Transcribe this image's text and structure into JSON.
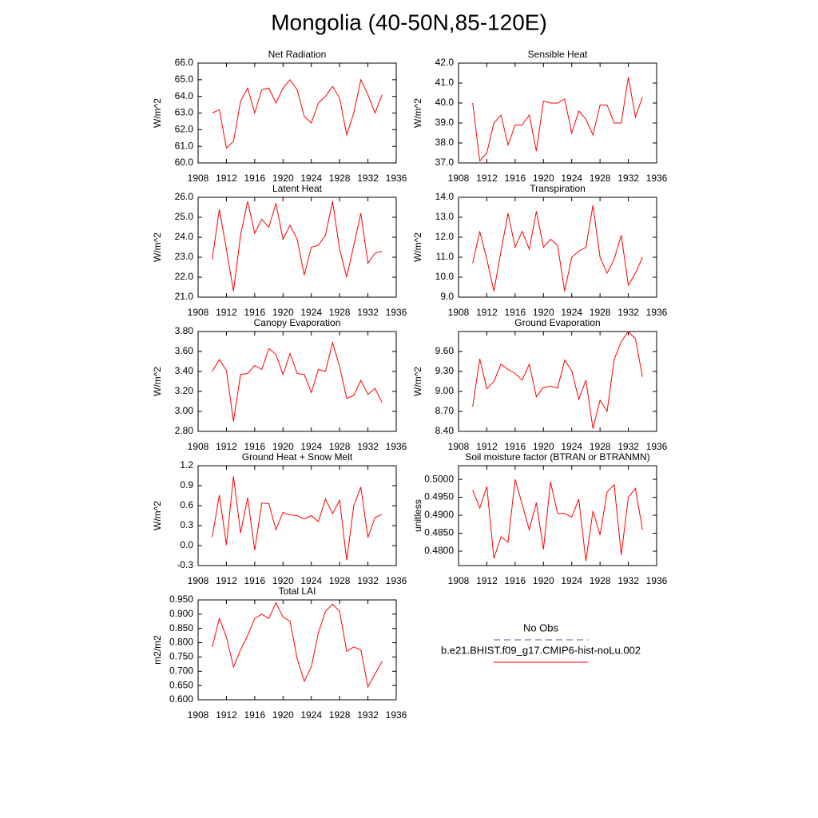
{
  "title": "Mongolia (40-50N,85-120E)",
  "legend": [
    {
      "name": "No Obs",
      "color": "#5a5a9a",
      "dash": true
    },
    {
      "name": "b.e21.BHIST.f09_g17.CMIP6-hist-noLu.002",
      "color": "#ff0000"
    }
  ],
  "chart_data": [
    {
      "type": "line",
      "title": "Net Radiation",
      "ylabel": "W/m^2",
      "x": [
        1910,
        1911,
        1912,
        1913,
        1914,
        1915,
        1916,
        1917,
        1918,
        1919,
        1920,
        1921,
        1922,
        1923,
        1924,
        1925,
        1926,
        1927,
        1928,
        1929,
        1930,
        1931,
        1932,
        1933,
        1934
      ],
      "series": [
        {
          "color": "#ff0000",
          "values": [
            63.0,
            63.2,
            60.9,
            61.3,
            63.7,
            64.5,
            63.0,
            64.4,
            64.5,
            63.6,
            64.5,
            65.0,
            64.4,
            62.8,
            62.4,
            63.6,
            64.0,
            64.6,
            63.9,
            61.7,
            63.0,
            65.0,
            64.1,
            63.0,
            64.1
          ]
        }
      ],
      "xlim": [
        1908,
        1936
      ],
      "xticks": [
        1908,
        1912,
        1916,
        1920,
        1924,
        1928,
        1932,
        1936
      ],
      "ylim": [
        60,
        66
      ],
      "yticks": [
        {
          "value": 60,
          "label": "60.0"
        },
        {
          "value": 61,
          "label": "61.0"
        },
        {
          "value": 62,
          "label": "62.0"
        },
        {
          "value": 63,
          "label": "63.0"
        },
        {
          "value": 64,
          "label": "64.0"
        },
        {
          "value": 65,
          "label": "65.0"
        },
        {
          "value": 66,
          "label": "66.0"
        }
      ]
    },
    {
      "type": "line",
      "title": "Sensible Heat",
      "ylabel": "W/m^2",
      "x": [
        1910,
        1911,
        1912,
        1913,
        1914,
        1915,
        1916,
        1917,
        1918,
        1919,
        1920,
        1921,
        1922,
        1923,
        1924,
        1925,
        1926,
        1927,
        1928,
        1929,
        1930,
        1931,
        1932,
        1933,
        1934
      ],
      "series": [
        {
          "color": "#ff0000",
          "values": [
            40.0,
            37.1,
            37.5,
            39.0,
            39.4,
            37.9,
            38.9,
            38.9,
            39.4,
            37.6,
            40.1,
            40.0,
            40.0,
            40.2,
            38.5,
            39.6,
            39.2,
            38.4,
            39.9,
            39.9,
            39.0,
            39.0,
            41.3,
            39.3,
            40.3
          ]
        }
      ],
      "xlim": [
        1908,
        1936
      ],
      "xticks": [
        1908,
        1912,
        1916,
        1920,
        1924,
        1928,
        1932,
        1936
      ],
      "ylim": [
        37,
        42
      ],
      "yticks": [
        {
          "value": 37,
          "label": "37.0"
        },
        {
          "value": 38,
          "label": "38.0"
        },
        {
          "value": 39,
          "label": "39.0"
        },
        {
          "value": 40,
          "label": "40.0"
        },
        {
          "value": 41,
          "label": "41.0"
        },
        {
          "value": 42,
          "label": "42.0"
        }
      ]
    },
    {
      "type": "line",
      "title": "Latent Heat",
      "ylabel": "W/m^2",
      "x": [
        1910,
        1911,
        1912,
        1913,
        1914,
        1915,
        1916,
        1917,
        1918,
        1919,
        1920,
        1921,
        1922,
        1923,
        1924,
        1925,
        1926,
        1927,
        1928,
        1929,
        1930,
        1931,
        1932,
        1933,
        1934
      ],
      "series": [
        {
          "color": "#ff0000",
          "values": [
            22.9,
            25.4,
            23.4,
            21.3,
            24.1,
            25.8,
            24.2,
            24.9,
            24.5,
            25.7,
            23.9,
            24.6,
            23.9,
            22.1,
            23.5,
            23.6,
            24.1,
            25.8,
            23.4,
            22.0,
            23.6,
            25.2,
            22.7,
            23.2,
            23.3
          ]
        }
      ],
      "xlim": [
        1908,
        1936
      ],
      "xticks": [
        1908,
        1912,
        1916,
        1920,
        1924,
        1928,
        1932,
        1936
      ],
      "ylim": [
        21,
        26
      ],
      "yticks": [
        {
          "value": 21,
          "label": "21.0"
        },
        {
          "value": 22,
          "label": "22.0"
        },
        {
          "value": 23,
          "label": "23.0"
        },
        {
          "value": 24,
          "label": "24.0"
        },
        {
          "value": 25,
          "label": "25.0"
        },
        {
          "value": 26,
          "label": "26.0"
        }
      ]
    },
    {
      "type": "line",
      "title": "Transpiration",
      "ylabel": "W/m^2",
      "x": [
        1910,
        1911,
        1912,
        1913,
        1914,
        1915,
        1916,
        1917,
        1918,
        1919,
        1920,
        1921,
        1922,
        1923,
        1924,
        1925,
        1926,
        1927,
        1928,
        1929,
        1930,
        1931,
        1932,
        1933,
        1934
      ],
      "series": [
        {
          "color": "#ff0000",
          "values": [
            10.7,
            12.3,
            10.9,
            9.3,
            11.3,
            13.2,
            11.5,
            12.3,
            11.4,
            13.3,
            11.5,
            11.9,
            11.6,
            9.3,
            11.0,
            11.3,
            11.5,
            13.6,
            11.0,
            10.2,
            10.9,
            12.1,
            9.6,
            10.2,
            11.0
          ]
        }
      ],
      "xlim": [
        1908,
        1936
      ],
      "xticks": [
        1908,
        1912,
        1916,
        1920,
        1924,
        1928,
        1932,
        1936
      ],
      "ylim": [
        9,
        14
      ],
      "yticks": [
        {
          "value": 9,
          "label": "9.0"
        },
        {
          "value": 10,
          "label": "10.0"
        },
        {
          "value": 11,
          "label": "11.0"
        },
        {
          "value": 12,
          "label": "12.0"
        },
        {
          "value": 13,
          "label": "13.0"
        },
        {
          "value": 14,
          "label": "14.0"
        }
      ]
    },
    {
      "type": "line",
      "title": "Canopy Evaporation",
      "ylabel": "W/m^2",
      "x": [
        1910,
        1911,
        1912,
        1913,
        1914,
        1915,
        1916,
        1917,
        1918,
        1919,
        1920,
        1921,
        1922,
        1923,
        1924,
        1925,
        1926,
        1927,
        1928,
        1929,
        1930,
        1931,
        1932,
        1933,
        1934
      ],
      "series": [
        {
          "color": "#ff0000",
          "values": [
            3.4,
            3.52,
            3.41,
            2.9,
            3.37,
            3.38,
            3.46,
            3.42,
            3.63,
            3.57,
            3.37,
            3.58,
            3.38,
            3.37,
            3.19,
            3.42,
            3.4,
            3.69,
            3.45,
            3.13,
            3.16,
            3.31,
            3.17,
            3.23,
            3.09
          ]
        }
      ],
      "xlim": [
        1908,
        1936
      ],
      "xticks": [
        1908,
        1912,
        1916,
        1920,
        1924,
        1928,
        1932,
        1936
      ],
      "ylim": [
        2.8,
        3.8
      ],
      "yticks": [
        {
          "value": 2.8,
          "label": "2.80"
        },
        {
          "value": 3.0,
          "label": "3.00"
        },
        {
          "value": 3.2,
          "label": "3.20"
        },
        {
          "value": 3.4,
          "label": "3.40"
        },
        {
          "value": 3.6,
          "label": "3.60"
        },
        {
          "value": 3.8,
          "label": "3.80"
        }
      ]
    },
    {
      "type": "line",
      "title": "Ground Evaporation",
      "ylabel": "W/m^2",
      "x": [
        1910,
        1911,
        1912,
        1913,
        1914,
        1915,
        1916,
        1917,
        1918,
        1919,
        1920,
        1921,
        1922,
        1923,
        1924,
        1925,
        1926,
        1927,
        1928,
        1929,
        1930,
        1931,
        1932,
        1933,
        1934
      ],
      "series": [
        {
          "color": "#ff0000",
          "values": [
            8.77,
            9.49,
            9.04,
            9.15,
            9.41,
            9.33,
            9.27,
            9.17,
            9.41,
            8.92,
            9.06,
            9.08,
            9.05,
            9.47,
            9.31,
            8.88,
            9.17,
            8.44,
            8.87,
            8.7,
            9.48,
            9.75,
            9.9,
            9.79,
            9.22
          ]
        }
      ],
      "xlim": [
        1908,
        1936
      ],
      "xticks": [
        1908,
        1912,
        1916,
        1920,
        1924,
        1928,
        1932,
        1936
      ],
      "ylim": [
        8.4,
        9.9
      ],
      "yticks": [
        {
          "value": 8.4,
          "label": "8.40"
        },
        {
          "value": 8.7,
          "label": "8.70"
        },
        {
          "value": 9.0,
          "label": "9.00"
        },
        {
          "value": 9.3,
          "label": "9.30"
        },
        {
          "value": 9.6,
          "label": "9.60"
        }
      ]
    },
    {
      "type": "line",
      "title": "Ground Heat + Snow Melt",
      "ylabel": "W/m^2",
      "x": [
        1910,
        1911,
        1912,
        1913,
        1914,
        1915,
        1916,
        1917,
        1918,
        1919,
        1920,
        1921,
        1922,
        1923,
        1924,
        1925,
        1926,
        1927,
        1928,
        1929,
        1930,
        1931,
        1932,
        1933,
        1934
      ],
      "series": [
        {
          "color": "#ff0000",
          "values": [
            0.13,
            0.76,
            0.01,
            1.04,
            0.19,
            0.72,
            -0.07,
            0.64,
            0.63,
            0.24,
            0.5,
            0.46,
            0.45,
            0.4,
            0.45,
            0.36,
            0.7,
            0.48,
            0.68,
            -0.22,
            0.6,
            0.88,
            0.12,
            0.42,
            0.47
          ]
        }
      ],
      "xlim": [
        1908,
        1936
      ],
      "xticks": [
        1908,
        1912,
        1916,
        1920,
        1924,
        1928,
        1932,
        1936
      ],
      "ylim": [
        -0.3,
        1.2
      ],
      "yticks": [
        -0.3,
        {
          "value": 0,
          "label": "0.0"
        },
        0.3,
        0.6,
        0.9,
        1.2
      ]
    },
    {
      "type": "line",
      "title": "Soil moisture factor (BTRAN or BTRANMN)",
      "ylabel": "unitless",
      "x": [
        1910,
        1911,
        1912,
        1913,
        1914,
        1915,
        1916,
        1917,
        1918,
        1919,
        1920,
        1921,
        1922,
        1923,
        1924,
        1925,
        1926,
        1927,
        1928,
        1929,
        1930,
        1931,
        1932,
        1933,
        1934
      ],
      "series": [
        {
          "color": "#ff0000",
          "values": [
            0.497,
            0.492,
            0.498,
            0.478,
            0.484,
            0.4825,
            0.5,
            0.493,
            0.486,
            0.4935,
            0.4805,
            0.4993,
            0.4905,
            0.4905,
            0.4895,
            0.4945,
            0.4773,
            0.4912,
            0.4845,
            0.4965,
            0.4985,
            0.479,
            0.495,
            0.4975,
            0.486
          ]
        }
      ],
      "xlim": [
        1908,
        1936
      ],
      "xticks": [
        1908,
        1912,
        1916,
        1920,
        1924,
        1928,
        1932,
        1936
      ],
      "ylim": [
        0.476,
        0.5038
      ],
      "yticks": [
        {
          "value": 0.48,
          "label": "0.4800"
        },
        {
          "value": 0.485,
          "label": "0.4850"
        },
        {
          "value": 0.49,
          "label": "0.4900"
        },
        {
          "value": 0.495,
          "label": "0.4950"
        },
        {
          "value": 0.5,
          "label": "0.5000"
        }
      ]
    },
    {
      "type": "line",
      "title": "Total LAI",
      "ylabel": "m2/m2",
      "x": [
        1910,
        1911,
        1912,
        1913,
        1914,
        1915,
        1916,
        1917,
        1918,
        1919,
        1920,
        1921,
        1922,
        1923,
        1924,
        1925,
        1926,
        1927,
        1928,
        1929,
        1930,
        1931,
        1932,
        1933,
        1934
      ],
      "series": [
        {
          "color": "#ff0000",
          "values": [
            0.785,
            0.885,
            0.82,
            0.715,
            0.775,
            0.825,
            0.885,
            0.9,
            0.885,
            0.94,
            0.89,
            0.875,
            0.745,
            0.665,
            0.715,
            0.835,
            0.91,
            0.935,
            0.91,
            0.77,
            0.785,
            0.775,
            0.645,
            0.69,
            0.735
          ]
        }
      ],
      "xlim": [
        1908,
        1936
      ],
      "xticks": [
        1908,
        1912,
        1916,
        1920,
        1924,
        1928,
        1932,
        1936
      ],
      "ylim": [
        0.6,
        0.95
      ],
      "yticks": [
        {
          "value": 0.6,
          "label": "0.600"
        },
        {
          "value": 0.65,
          "label": "0.650"
        },
        {
          "value": 0.7,
          "label": "0.700"
        },
        {
          "value": 0.75,
          "label": "0.750"
        },
        {
          "value": 0.8,
          "label": "0.800"
        },
        {
          "value": 0.85,
          "label": "0.850"
        },
        {
          "value": 0.9,
          "label": "0.900"
        },
        {
          "value": 0.95,
          "label": "0.950"
        }
      ]
    }
  ]
}
